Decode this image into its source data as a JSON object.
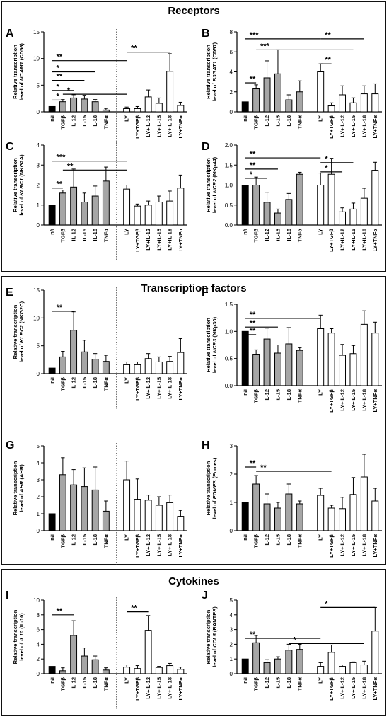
{
  "sections": [
    {
      "title": "Receptors"
    },
    {
      "title": "Transcription factors"
    },
    {
      "title": "Cytokines"
    }
  ],
  "colors": {
    "ni": "#000000",
    "cyto": "#a6a6a6",
    "ly": "#ffffff",
    "axis": "#000000"
  },
  "chart_data": [
    {
      "panel": "A",
      "type": "bar",
      "ylabel_pre": "Relative transcription",
      "ylabel_gene": "NCAM1",
      "ylabel_post": "(CD56)",
      "ylabel_prefix": "level of ",
      "categories": [
        "n/i",
        "TGFβ",
        "IL-12",
        "IL-15",
        "IL-18",
        "TNFα",
        "LY",
        "LY+TGFβ",
        "LY+IL-12",
        "LY+IL-15",
        "LY+IL-18",
        "LY+TNFα"
      ],
      "values": [
        1.0,
        1.9,
        2.6,
        2.4,
        1.9,
        0.35,
        0.6,
        0.6,
        2.8,
        1.6,
        7.6,
        1.2
      ],
      "errors": [
        0,
        0.4,
        0.6,
        0.7,
        0.4,
        0.3,
        0.3,
        0.4,
        1.3,
        1.0,
        3.3,
        0.6
      ],
      "ylim": [
        0,
        15
      ],
      "yticks": [
        0,
        5,
        10,
        15
      ],
      "sig": [
        {
          "label": "*",
          "from": 0,
          "to": 1,
          "y": 2.2
        },
        {
          "label": "*",
          "from": 1,
          "to": 6,
          "y": 3.3
        },
        {
          "label": "*",
          "from": 0,
          "to": 2,
          "y": 4.0
        },
        {
          "label": "**",
          "from": 0,
          "to": 3,
          "y": 5.9
        },
        {
          "label": "*",
          "from": 0,
          "to": 4,
          "y": 7.5
        },
        {
          "label": "**",
          "from": 0,
          "to": 6,
          "y": 9.6
        },
        {
          "label": "**",
          "from": 6,
          "to": 10,
          "y": 11.2
        }
      ]
    },
    {
      "panel": "B",
      "type": "bar",
      "ylabel_pre": "Relative transcription",
      "ylabel_gene": "B3GAT1",
      "ylabel_post": "(CD57)",
      "ylabel_prefix": "level of ",
      "categories": [
        "n/i",
        "TGFβ",
        "IL-12",
        "IL-15",
        "IL-18",
        "TNFα",
        "LY",
        "LY+TGFβ",
        "LY+IL-12",
        "LY+IL-15",
        "LY+IL-18",
        "LY+TNFα"
      ],
      "values": [
        1.0,
        2.3,
        3.4,
        3.8,
        1.2,
        2.0,
        4.0,
        0.6,
        1.7,
        0.9,
        1.8,
        1.8
      ],
      "errors": [
        0,
        0.4,
        1.7,
        2.4,
        0.5,
        1.1,
        0.8,
        0.3,
        0.9,
        0.5,
        0.8,
        1.0
      ],
      "ylim": [
        0,
        8
      ],
      "yticks": [
        0,
        2,
        4,
        6,
        8
      ],
      "sig": [
        {
          "label": "**",
          "from": 0,
          "to": 1,
          "y": 2.9
        },
        {
          "label": "**",
          "from": 6,
          "to": 7,
          "y": 4.8
        },
        {
          "label": "***",
          "from": 1,
          "to": 9,
          "y": 6.2
        },
        {
          "label": "***",
          "from": 0,
          "to": 6,
          "y": 7.3
        },
        {
          "label": "**",
          "from": 6,
          "to": 10,
          "y": 7.3
        }
      ]
    },
    {
      "panel": "C",
      "type": "bar",
      "ylabel_pre": "Relative transcription",
      "ylabel_gene": "KLRC1",
      "ylabel_post": "(NKG2A)",
      "ylabel_prefix": "level of ",
      "categories": [
        "n/i",
        "TGFβ",
        "IL-12",
        "IL-15",
        "IL-18",
        "TNFα",
        "LY",
        "LY+TGFβ",
        "LY+IL-12",
        "LY+IL-15",
        "LY+IL-18",
        "LY+TNFα"
      ],
      "values": [
        1.0,
        1.6,
        1.9,
        1.15,
        1.45,
        2.2,
        1.8,
        0.95,
        1.0,
        1.15,
        1.2,
        1.85
      ],
      "errors": [
        0,
        0.15,
        0.9,
        0.45,
        0.5,
        0.7,
        0.2,
        0.1,
        0.2,
        0.3,
        0.5,
        0.65
      ],
      "ylim": [
        0,
        4
      ],
      "yticks": [
        0,
        1,
        2,
        3,
        4
      ],
      "sig": [
        {
          "label": "**",
          "from": 0,
          "to": 1,
          "y": 1.85
        },
        {
          "label": "**",
          "from": 1,
          "to": 6,
          "y": 2.75
        },
        {
          "label": "***",
          "from": 0,
          "to": 6,
          "y": 3.2
        }
      ]
    },
    {
      "panel": "D",
      "type": "bar",
      "ylabel_pre": "Relative transcription",
      "ylabel_gene": "NCR2",
      "ylabel_post": "(NKp44)",
      "ylabel_prefix": "level of ",
      "categories": [
        "n/i",
        "TGFβ",
        "IL-12",
        "IL-15",
        "IL-18",
        "TNFα",
        "LY",
        "LY+TGFβ",
        "LY+IL-12",
        "LY+IL-15",
        "LY+IL-18",
        "LY+TNFα"
      ],
      "values": [
        1.0,
        1.0,
        0.57,
        0.3,
        0.64,
        1.27,
        1.0,
        1.27,
        0.33,
        0.4,
        0.67,
        1.37
      ],
      "errors": [
        0,
        0.2,
        0.25,
        0.1,
        0.15,
        0.05,
        0.3,
        0.4,
        0.1,
        0.15,
        0.25,
        0.2
      ],
      "ylim": [
        0,
        2
      ],
      "yticks": [
        0,
        0.5,
        1.0,
        1.5,
        2.0
      ],
      "sig": [
        {
          "label": "*",
          "from": 0,
          "to": 2,
          "y": 1.17
        },
        {
          "label": "**",
          "from": 0,
          "to": 3,
          "y": 1.4
        },
        {
          "label": "**",
          "from": 0,
          "to": 6,
          "y": 1.68
        },
        {
          "label": "*",
          "from": 6,
          "to": 8,
          "y": 1.33
        },
        {
          "label": "*",
          "from": 6,
          "to": 9,
          "y": 1.56
        }
      ]
    },
    {
      "panel": "E",
      "type": "bar",
      "ylabel_pre": "Relative transcription",
      "ylabel_gene": "KLRC2",
      "ylabel_post": "(NKG2C)",
      "ylabel_prefix": "level of ",
      "categories": [
        "n/i",
        "TGFβ",
        "IL-12",
        "IL-15",
        "IL-18",
        "TNFα",
        "LY",
        "LY+TGFβ",
        "LY+IL-12",
        "LY+IL-15",
        "LY+IL-18",
        "LY+TNFα"
      ],
      "values": [
        1.0,
        3.0,
        7.8,
        3.9,
        2.6,
        2.2,
        1.6,
        1.6,
        2.7,
        2.1,
        2.2,
        3.8
      ],
      "errors": [
        0,
        1.0,
        3.3,
        2.1,
        1.0,
        1.1,
        0.5,
        0.5,
        0.9,
        0.9,
        0.9,
        2.5
      ],
      "ylim": [
        0,
        15
      ],
      "yticks": [
        0,
        5,
        10,
        15
      ],
      "sig": [
        {
          "label": "**",
          "from": 0,
          "to": 2,
          "y": 11.2
        }
      ]
    },
    {
      "panel": "F",
      "type": "bar",
      "ylabel_pre": "Relative transcription",
      "ylabel_gene": "NCR3",
      "ylabel_post": "(NKp30)",
      "ylabel_prefix": "level of ",
      "categories": [
        "n/i",
        "TGFβ",
        "IL-12",
        "IL-15",
        "IL-18",
        "TNFα",
        "LY",
        "LY+TGFβ",
        "LY+IL-12",
        "LY+IL-15",
        "LY+IL-18",
        "LY+TNFα"
      ],
      "values": [
        1.0,
        0.58,
        0.86,
        0.6,
        0.77,
        0.65,
        1.05,
        0.97,
        0.56,
        0.59,
        1.13,
        0.97
      ],
      "errors": [
        0,
        0.08,
        0.2,
        0.15,
        0.3,
        0.05,
        0.25,
        0.08,
        0.2,
        0.15,
        0.25,
        0.2
      ],
      "ylim": [
        0,
        1.5
      ],
      "yticks": [
        0,
        0.5,
        1.0,
        1.5
      ],
      "sig": [
        {
          "label": "**",
          "from": 0,
          "to": 1,
          "y": 0.94
        },
        {
          "label": "**",
          "from": 0,
          "to": 3,
          "y": 1.08
        },
        {
          "label": "**",
          "from": 0,
          "to": 6,
          "y": 1.24
        }
      ]
    },
    {
      "panel": "G",
      "type": "bar",
      "ylabel_pre": "Relative transcription",
      "ylabel_gene": "AHR",
      "ylabel_post": "(AHR)",
      "ylabel_prefix": "level of ",
      "categories": [
        "n/i",
        "TGFβ",
        "IL-12",
        "IL-15",
        "IL-18",
        "TNFα",
        "LY",
        "LY+TGFβ",
        "LY+IL-12",
        "LY+IL-15",
        "LY+IL-18",
        "LY+TNFα"
      ],
      "values": [
        1.0,
        3.3,
        2.7,
        2.6,
        2.4,
        1.15,
        3.0,
        1.85,
        1.8,
        1.5,
        1.65,
        0.85
      ],
      "errors": [
        0,
        1.0,
        0.9,
        1.1,
        1.35,
        0.6,
        1.1,
        1.2,
        0.3,
        0.5,
        0.45,
        0.35
      ],
      "ylim": [
        0,
        5
      ],
      "yticks": [
        0,
        1,
        2,
        3,
        4,
        5
      ],
      "sig": []
    },
    {
      "panel": "H",
      "type": "bar",
      "ylabel_pre": "Relative transcription",
      "ylabel_gene": "EOMES",
      "ylabel_post": "(Eomes)",
      "ylabel_prefix": "level of ",
      "categories": [
        "n/i",
        "TGFβ",
        "IL-12",
        "IL-15",
        "IL-18",
        "TNFα",
        "LY",
        "LY+TGFβ",
        "LY+IL-12",
        "LY+IL-15",
        "LY+IL-18",
        "LY+TNFα"
      ],
      "values": [
        1.0,
        1.65,
        0.95,
        0.8,
        1.3,
        0.95,
        1.25,
        0.8,
        0.78,
        1.28,
        1.9,
        1.05
      ],
      "errors": [
        0,
        0.3,
        0.35,
        0.2,
        0.35,
        0.1,
        0.25,
        0.1,
        0.4,
        0.6,
        0.8,
        0.45
      ],
      "ylim": [
        0,
        3
      ],
      "yticks": [
        0,
        1,
        2,
        3
      ],
      "sig": [
        {
          "label": "**",
          "from": 0,
          "to": 1,
          "y": 2.25
        },
        {
          "label": "**",
          "from": 1,
          "to": 7,
          "y": 2.1
        }
      ]
    },
    {
      "panel": "I",
      "type": "bar",
      "ylabel_pre": "Relative transcription",
      "ylabel_gene": "IL10",
      "ylabel_post": "(IL-10)",
      "ylabel_prefix": "level of ",
      "categories": [
        "n/i",
        "TGFβ",
        "IL-12",
        "IL-15",
        "IL-18",
        "TNFα",
        "LY",
        "LY+TGFβ",
        "LY+IL-12",
        "LY+IL-15",
        "LY+IL-18",
        "LY+TNFα"
      ],
      "values": [
        1.0,
        0.4,
        5.2,
        2.4,
        1.9,
        0.5,
        0.9,
        0.7,
        5.9,
        0.85,
        1.1,
        0.6
      ],
      "errors": [
        0,
        0.4,
        2.0,
        1.1,
        0.5,
        0.3,
        0.3,
        0.4,
        2.0,
        0.15,
        0.3,
        0.3
      ],
      "ylim": [
        0,
        10
      ],
      "yticks": [
        0,
        2,
        4,
        6,
        8,
        10
      ],
      "sig": [
        {
          "label": "**",
          "from": 0,
          "to": 2,
          "y": 8.0
        },
        {
          "label": "**",
          "from": 6,
          "to": 8,
          "y": 8.4
        }
      ]
    },
    {
      "panel": "J",
      "type": "bar",
      "ylabel_pre": "Relative transcription",
      "ylabel_gene": "CCL5",
      "ylabel_post": "(RANTES)",
      "ylabel_prefix": "level of ",
      "categories": [
        "n/i",
        "TGFβ",
        "IL-12",
        "IL-15",
        "IL-18",
        "TNFα",
        "LY",
        "LY+TGFβ",
        "LY+IL-12",
        "LY+IL-15",
        "LY+IL-18",
        "LY+TNFα"
      ],
      "values": [
        1.0,
        2.1,
        0.75,
        1.0,
        1.6,
        1.65,
        0.5,
        1.45,
        0.5,
        0.75,
        0.6,
        2.9
      ],
      "errors": [
        0,
        0.5,
        0.2,
        0.15,
        0.4,
        0.35,
        0.25,
        0.5,
        0.1,
        0.05,
        0.25,
        1.6
      ],
      "ylim": [
        0,
        5
      ],
      "yticks": [
        0,
        1,
        2,
        3,
        4,
        5
      ],
      "sig": [
        {
          "label": "**",
          "from": 0,
          "to": 6,
          "y": 2.4
        },
        {
          "label": "*",
          "from": 4,
          "to": 10,
          "y": 2.05
        },
        {
          "label": "*",
          "from": 6,
          "to": 11,
          "y": 4.5
        }
      ]
    }
  ]
}
